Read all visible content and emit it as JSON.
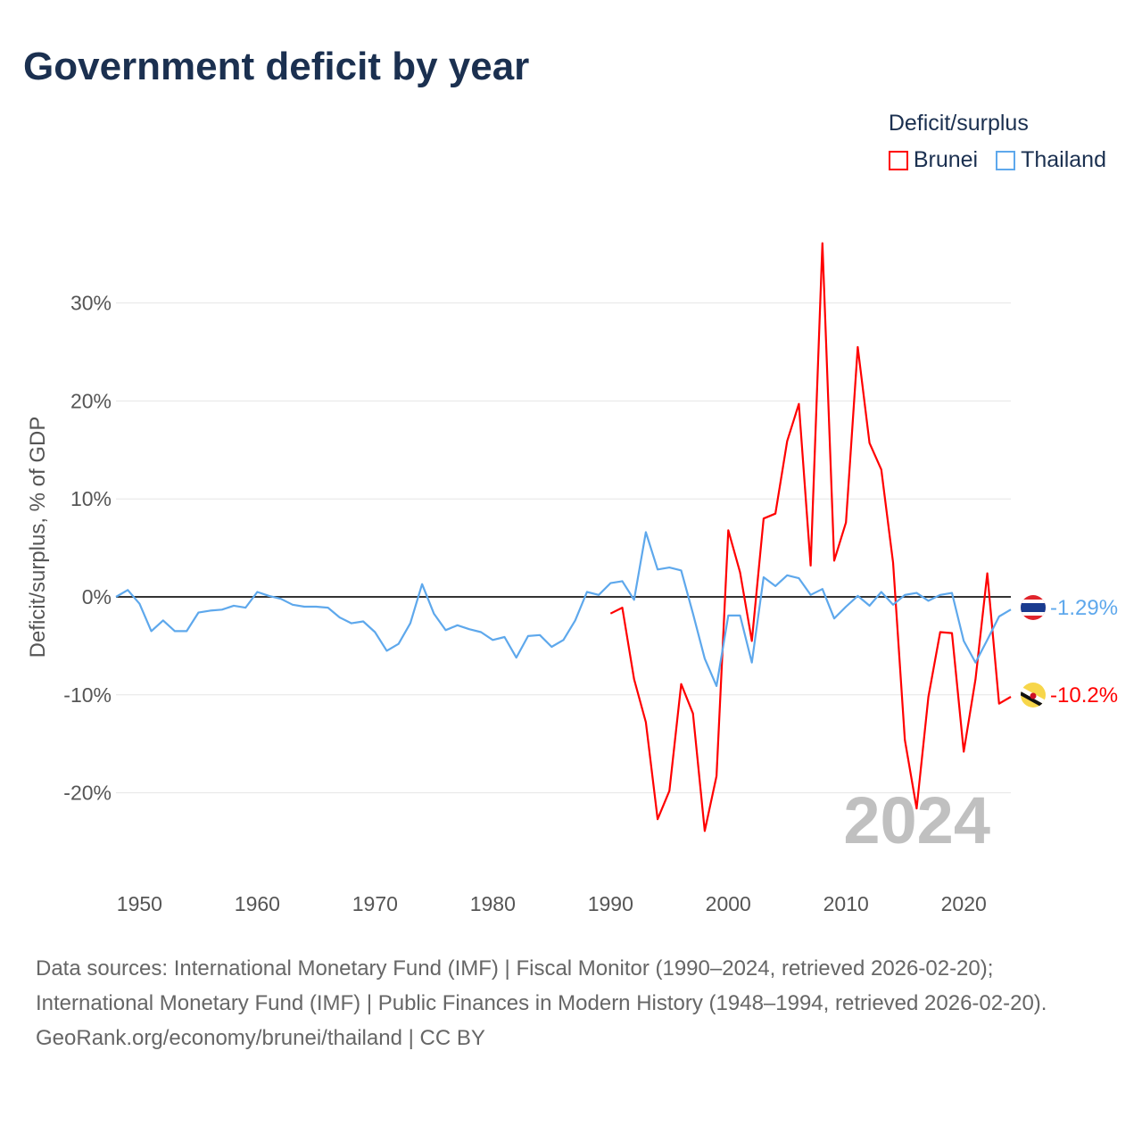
{
  "title": "Government deficit by year",
  "legend": {
    "title": "Deficit/surplus",
    "items": [
      {
        "label": "Brunei",
        "color": "#ff0000"
      },
      {
        "label": "Thailand",
        "color": "#5ea8ec"
      }
    ]
  },
  "year_watermark": "2024",
  "end_labels": {
    "thailand": "-1.29%",
    "brunei": "-10.2%"
  },
  "footer": {
    "sources": "Data sources: International Monetary Fund (IMF) | Fiscal Monitor (1990–2024, retrieved 2026-02-20); International Monetary Fund (IMF) | Public Finances in Modern History (1948–1994, retrieved 2026-02-20).",
    "credit": "GeoRank.org/economy/brunei/thailand | CC BY"
  },
  "chart_data": {
    "type": "line",
    "title": "Government deficit by year",
    "xlabel": "",
    "ylabel": "Deficit/surplus, % of GDP",
    "xlim": [
      1948,
      2024
    ],
    "ylim": [
      -26,
      37
    ],
    "xticks": [
      1950,
      1960,
      1970,
      1980,
      1990,
      2000,
      2010,
      2020
    ],
    "xtick_labels": [
      "1950",
      "1960",
      "1970",
      "1980",
      "1990",
      "2000",
      "2010",
      "2020"
    ],
    "yticks": [
      -20,
      -10,
      0,
      10,
      20,
      30
    ],
    "ytick_labels": [
      "-20%",
      "-10%",
      "0%",
      "10%",
      "20%",
      "30%"
    ],
    "grid": true,
    "legend_position": "top-right",
    "series": [
      {
        "name": "Brunei",
        "color": "#ff0000",
        "start_year": 1990,
        "values": [
          -1.7,
          -1.1,
          -8.4,
          -12.8,
          -22.7,
          -19.8,
          -8.9,
          -11.9,
          -23.9,
          -18.3,
          6.8,
          2.5,
          -4.5,
          8.0,
          8.5,
          15.9,
          19.7,
          3.2,
          36.1,
          3.7,
          7.6,
          25.5,
          15.7,
          13.0,
          3.5,
          -14.6,
          -21.6,
          -10.2,
          -3.6,
          -3.7,
          -15.8,
          -8.4,
          2.4,
          -10.9,
          -10.2
        ]
      },
      {
        "name": "Thailand",
        "color": "#5ea8ec",
        "start_year": 1948,
        "values": [
          0,
          0.7,
          -0.7,
          -3.5,
          -2.4,
          -3.5,
          -3.5,
          -1.6,
          -1.4,
          -1.3,
          -0.9,
          -1.1,
          0.5,
          0.1,
          -0.2,
          -0.8,
          -1.0,
          -1.0,
          -1.1,
          -2.1,
          -2.7,
          -2.5,
          -3.6,
          -5.5,
          -4.8,
          -2.7,
          1.3,
          -1.7,
          -3.4,
          -2.9,
          -3.3,
          -3.6,
          -4.4,
          -4.1,
          -6.2,
          -4.0,
          -3.9,
          -5.1,
          -4.4,
          -2.4,
          0.5,
          0.2,
          1.4,
          1.6,
          -0.3,
          6.6,
          2.8,
          3.0,
          2.7,
          -1.7,
          -6.3,
          -9.1,
          -1.9,
          -1.9,
          -6.7,
          2.0,
          1.1,
          2.2,
          1.9,
          0.2,
          0.8,
          -2.2,
          -1.0,
          0.1,
          -0.9,
          0.5,
          -0.8,
          0.2,
          0.4,
          -0.4,
          0.2,
          0.4,
          -4.5,
          -6.7,
          -4.4,
          -2.0,
          -1.29
        ]
      }
    ]
  }
}
